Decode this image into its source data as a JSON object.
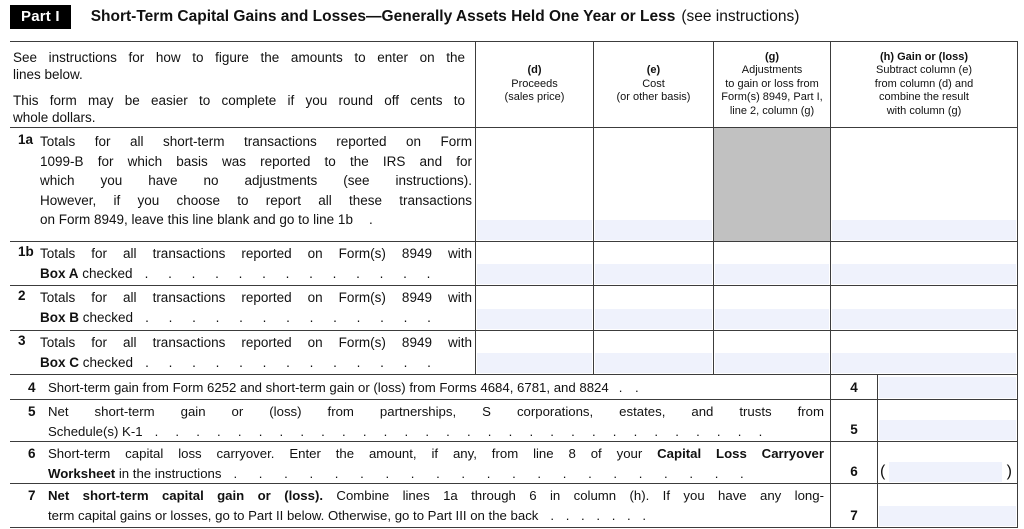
{
  "part_header": {
    "part_label": "Part I",
    "title_bold": "Short-Term Capital Gains and Losses—Generally Assets Held One Year or Less",
    "title_note": "(see instructions)"
  },
  "colors": {
    "input_fill": "#eff2fc",
    "shaded_cell": "#c1c1c1",
    "border": "#3c3c3c"
  },
  "instructions": {
    "p1_line1": "See instructions for how to figure the amounts to enter on the",
    "p1_line2": "lines below.",
    "p2_line1": "This form may be easier to complete if you round off cents to",
    "p2_line2": "whole dollars."
  },
  "columns": {
    "d": {
      "letter": "(d)",
      "line1": "Proceeds",
      "line2": "(sales price)"
    },
    "e": {
      "letter": "(e)",
      "line1": "Cost",
      "line2": "(or other basis)"
    },
    "g": {
      "letter": "(g)",
      "line1": "Adjustments",
      "line2": "to gain or loss from",
      "line3": "Form(s) 8949, Part I,",
      "line4": "line 2, column (g)"
    },
    "h": {
      "letter": "(h) Gain or (loss)",
      "line1": "Subtract column (e)",
      "line2": "from column (d) and",
      "line3": "combine the result",
      "line4": "with column (g)"
    }
  },
  "row_1a": {
    "num": "1a",
    "line1": "Totals for all short-term transactions reported on Form",
    "line2": "1099-B for which basis was reported to the IRS and for",
    "line3": "which you have no adjustments (see instructions).",
    "line4": "However, if you choose to report all these transactions",
    "line5": "on Form 8949, leave this line blank and go to line 1b",
    "tail_dot": "."
  },
  "row_1b": {
    "num": "1b",
    "line1": "Totals for all transactions reported on Form(s) 8949 with",
    "bold": "Box A",
    "rest": " checked",
    "dots": ". . . . . . . . . . . . ."
  },
  "row_2": {
    "num": "2",
    "line1": "Totals for all transactions reported on Form(s) 8949 with",
    "bold": "Box B",
    "rest": " checked",
    "dots": ". . . . . . . . . . . . ."
  },
  "row_3": {
    "num": "3",
    "line1": "Totals for all transactions reported on Form(s) 8949 with",
    "bold": "Box C",
    "rest": " checked",
    "dots": ". . . . . . . . . . . . ."
  },
  "row_4": {
    "num": "4",
    "text": "Short-term gain from Form 6252 and short-term gain or (loss) from Forms 4684, 6781, and 8824",
    "dots": ". .",
    "box_label": "4"
  },
  "row_5": {
    "num": "5",
    "line1": "Net short-term gain or (loss) from partnerships, S corporations, estates, and trusts from",
    "line2": "Schedule(s) K-1",
    "dots": ". . . . . . . . . . . . . . . . . . . . . . . . . . . . . .",
    "box_label": "5"
  },
  "row_6": {
    "num": "6",
    "seg1": "Short-term capital loss carryover. Enter the amount, if any, from line 8 of your ",
    "bold1": "Capital Loss Carryover",
    "line2_bold": "Worksheet",
    "seg2": " in the instructions",
    "dots": ". . . . . . . . . . . . . . . . . . . . .",
    "box_label": "6",
    "paren_open": "(",
    "paren_close": ")"
  },
  "row_7": {
    "num": "7",
    "bold": "Net short-term capital gain or (loss).",
    "seg1": " Combine lines 1a through 6 in column (h). If you have any long-",
    "line2": "term capital gains or losses, go to Part II below. Otherwise, go to Part III on the back",
    "dots": ". . . . . . .",
    "box_label": "7"
  }
}
